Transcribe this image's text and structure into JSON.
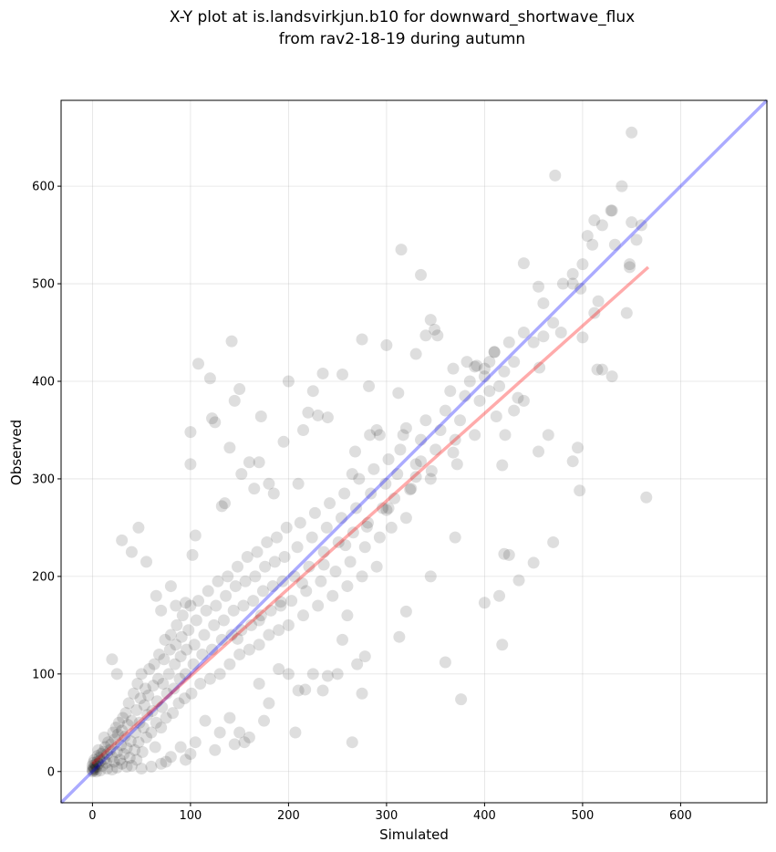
{
  "chart_data": {
    "type": "scatter",
    "title_line1": "X-Y plot at is.landsvirkjun.b10 for downward_shortwave_flux",
    "title_line2": "from rav2-18-19 during autumn",
    "xlabel": "Simulated",
    "ylabel": "Observed",
    "xlim": [
      -32,
      688
    ],
    "ylim": [
      -32,
      688
    ],
    "xticks": [
      0,
      100,
      200,
      300,
      400,
      500,
      600
    ],
    "yticks": [
      0,
      100,
      200,
      300,
      400,
      500,
      600
    ],
    "grid": true,
    "identity_line": {
      "color": "#0000ff",
      "opacity": 0.33
    },
    "fit_line": {
      "color": "#ff0000",
      "opacity": 0.33,
      "x": [
        0,
        567
      ],
      "y": [
        8,
        517
      ]
    },
    "point_color": "#000000",
    "point_opacity": 0.13,
    "points": [
      [
        0,
        0
      ],
      [
        0,
        2
      ],
      [
        1,
        1
      ],
      [
        1,
        4
      ],
      [
        2,
        3
      ],
      [
        0,
        6
      ],
      [
        3,
        7
      ],
      [
        1,
        9
      ],
      [
        2,
        12
      ],
      [
        4,
        5
      ],
      [
        3,
        2
      ],
      [
        5,
        10
      ],
      [
        6,
        8
      ],
      [
        7,
        14
      ],
      [
        5,
        16
      ],
      [
        8,
        11
      ],
      [
        9,
        18
      ],
      [
        10,
        6
      ],
      [
        6,
        22
      ],
      [
        11,
        20
      ],
      [
        12,
        13
      ],
      [
        13,
        25
      ],
      [
        14,
        9
      ],
      [
        15,
        18
      ],
      [
        16,
        30
      ],
      [
        12,
        35
      ],
      [
        18,
        22
      ],
      [
        19,
        28
      ],
      [
        20,
        15
      ],
      [
        21,
        40
      ],
      [
        22,
        10
      ],
      [
        23,
        33
      ],
      [
        24,
        45
      ],
      [
        25,
        20
      ],
      [
        26,
        38
      ],
      [
        27,
        50
      ],
      [
        28,
        12
      ],
      [
        29,
        27
      ],
      [
        30,
        42
      ],
      [
        31,
        55
      ],
      [
        32,
        18
      ],
      [
        33,
        36
      ],
      [
        34,
        60
      ],
      [
        35,
        24
      ],
      [
        36,
        48
      ],
      [
        37,
        70
      ],
      [
        38,
        14
      ],
      [
        39,
        31
      ],
      [
        40,
        52
      ],
      [
        42,
        80
      ],
      [
        43,
        22
      ],
      [
        44,
        40
      ],
      [
        45,
        63
      ],
      [
        46,
        90
      ],
      [
        47,
        30
      ],
      [
        48,
        50
      ],
      [
        49,
        75
      ],
      [
        50,
        100
      ],
      [
        51,
        20
      ],
      [
        52,
        45
      ],
      [
        53,
        68
      ],
      [
        54,
        85
      ],
      [
        55,
        35
      ],
      [
        56,
        58
      ],
      [
        57,
        78
      ],
      [
        58,
        105
      ],
      [
        60,
        40
      ],
      [
        61,
        62
      ],
      [
        62,
        88
      ],
      [
        63,
        110
      ],
      [
        64,
        25
      ],
      [
        65,
        50
      ],
      [
        66,
        72
      ],
      [
        67,
        95
      ],
      [
        68,
        120
      ],
      [
        70,
        45
      ],
      [
        71,
        66
      ],
      [
        72,
        90
      ],
      [
        73,
        115
      ],
      [
        74,
        135
      ],
      [
        75,
        55
      ],
      [
        76,
        80
      ],
      [
        78,
        100
      ],
      [
        79,
        125
      ],
      [
        80,
        140
      ],
      [
        82,
        60
      ],
      [
        83,
        85
      ],
      [
        84,
        110
      ],
      [
        85,
        130
      ],
      [
        86,
        150
      ],
      [
        88,
        70
      ],
      [
        89,
        95
      ],
      [
        90,
        118
      ],
      [
        91,
        138
      ],
      [
        92,
        160
      ],
      [
        94,
        75
      ],
      [
        95,
        100
      ],
      [
        96,
        125
      ],
      [
        98,
        145
      ],
      [
        100,
        170
      ],
      [
        101,
        80
      ],
      [
        103,
        110
      ],
      [
        104,
        130
      ],
      [
        106,
        155
      ],
      [
        108,
        175
      ],
      [
        110,
        90
      ],
      [
        112,
        120
      ],
      [
        114,
        140
      ],
      [
        116,
        165
      ],
      [
        118,
        185
      ],
      [
        120,
        95
      ],
      [
        122,
        125
      ],
      [
        124,
        150
      ],
      [
        126,
        170
      ],
      [
        128,
        195
      ],
      [
        130,
        100
      ],
      [
        132,
        135
      ],
      [
        134,
        155
      ],
      [
        136,
        180
      ],
      [
        138,
        200
      ],
      [
        140,
        110
      ],
      [
        142,
        140
      ],
      [
        144,
        165
      ],
      [
        146,
        190
      ],
      [
        148,
        210
      ],
      [
        150,
        120
      ],
      [
        152,
        145
      ],
      [
        154,
        170
      ],
      [
        156,
        195
      ],
      [
        158,
        220
      ],
      [
        160,
        125
      ],
      [
        162,
        150
      ],
      [
        164,
        175
      ],
      [
        166,
        200
      ],
      [
        168,
        225
      ],
      [
        170,
        130
      ],
      [
        172,
        160
      ],
      [
        174,
        185
      ],
      [
        176,
        210
      ],
      [
        178,
        235
      ],
      [
        180,
        140
      ],
      [
        182,
        165
      ],
      [
        184,
        190
      ],
      [
        186,
        215
      ],
      [
        188,
        240
      ],
      [
        190,
        145
      ],
      [
        192,
        170
      ],
      [
        194,
        195
      ],
      [
        196,
        220
      ],
      [
        198,
        250
      ],
      [
        200,
        150
      ],
      [
        203,
        175
      ],
      [
        206,
        200
      ],
      [
        209,
        230
      ],
      [
        212,
        255
      ],
      [
        215,
        160
      ],
      [
        218,
        185
      ],
      [
        221,
        210
      ],
      [
        224,
        240
      ],
      [
        227,
        265
      ],
      [
        230,
        170
      ],
      [
        233,
        195
      ],
      [
        236,
        225
      ],
      [
        239,
        250
      ],
      [
        242,
        275
      ],
      [
        245,
        180
      ],
      [
        248,
        205
      ],
      [
        251,
        235
      ],
      [
        254,
        260
      ],
      [
        257,
        285
      ],
      [
        260,
        190
      ],
      [
        263,
        215
      ],
      [
        266,
        245
      ],
      [
        269,
        270
      ],
      [
        272,
        300
      ],
      [
        275,
        200
      ],
      [
        278,
        230
      ],
      [
        281,
        255
      ],
      [
        284,
        285
      ],
      [
        287,
        310
      ],
      [
        290,
        210
      ],
      [
        293,
        240
      ],
      [
        296,
        270
      ],
      [
        299,
        295
      ],
      [
        302,
        320
      ],
      [
        305,
        250
      ],
      [
        308,
        280
      ],
      [
        311,
        305
      ],
      [
        314,
        330
      ],
      [
        317,
        345
      ],
      [
        320,
        260
      ],
      [
        325,
        290
      ],
      [
        330,
        315
      ],
      [
        335,
        340
      ],
      [
        340,
        360
      ],
      [
        345,
        300
      ],
      [
        350,
        330
      ],
      [
        355,
        350
      ],
      [
        360,
        370
      ],
      [
        365,
        390
      ],
      [
        370,
        340
      ],
      [
        375,
        360
      ],
      [
        380,
        385
      ],
      [
        385,
        400
      ],
      [
        390,
        415
      ],
      [
        395,
        380
      ],
      [
        400,
        405
      ],
      [
        405,
        420
      ],
      [
        410,
        430
      ],
      [
        415,
        395
      ],
      [
        420,
        410
      ],
      [
        425,
        440
      ],
      [
        430,
        420
      ],
      [
        440,
        450
      ],
      [
        450,
        440
      ],
      [
        460,
        480
      ],
      [
        470,
        460
      ],
      [
        480,
        500
      ],
      [
        490,
        510
      ],
      [
        500,
        520
      ],
      [
        510,
        540
      ],
      [
        520,
        560
      ],
      [
        530,
        575
      ],
      [
        540,
        600
      ],
      [
        550,
        655
      ],
      [
        560,
        560
      ],
      [
        548,
        517
      ],
      [
        545,
        470
      ],
      [
        530,
        405
      ],
      [
        515,
        412
      ],
      [
        500,
        445
      ],
      [
        495,
        332
      ],
      [
        490,
        318
      ],
      [
        497,
        288
      ],
      [
        470,
        235
      ],
      [
        455,
        328
      ],
      [
        450,
        214
      ],
      [
        440,
        380
      ],
      [
        435,
        196
      ],
      [
        430,
        370
      ],
      [
        425,
        222
      ],
      [
        420,
        223
      ],
      [
        418,
        130
      ],
      [
        415,
        180
      ],
      [
        400,
        173
      ],
      [
        376,
        74
      ],
      [
        370,
        240
      ],
      [
        360,
        112
      ],
      [
        345,
        200
      ],
      [
        335,
        318
      ],
      [
        330,
        302
      ],
      [
        320,
        164
      ],
      [
        313,
        138
      ],
      [
        300,
        268
      ],
      [
        290,
        350
      ],
      [
        282,
        395
      ],
      [
        278,
        118
      ],
      [
        275,
        80
      ],
      [
        270,
        110
      ],
      [
        265,
        30
      ],
      [
        260,
        160
      ],
      [
        255,
        135
      ],
      [
        250,
        100
      ],
      [
        240,
        98
      ],
      [
        235,
        83
      ],
      [
        225,
        100
      ],
      [
        217,
        84
      ],
      [
        210,
        83
      ],
      [
        207,
        40
      ],
      [
        200,
        100
      ],
      [
        190,
        105
      ],
      [
        180,
        70
      ],
      [
        175,
        52
      ],
      [
        170,
        90
      ],
      [
        160,
        35
      ],
      [
        155,
        30
      ],
      [
        150,
        40
      ],
      [
        145,
        28
      ],
      [
        140,
        55
      ],
      [
        130,
        40
      ],
      [
        125,
        22
      ],
      [
        115,
        52
      ],
      [
        105,
        30
      ],
      [
        100,
        18
      ],
      [
        95,
        12
      ],
      [
        90,
        25
      ],
      [
        80,
        15
      ],
      [
        75,
        10
      ],
      [
        70,
        8
      ],
      [
        60,
        5
      ],
      [
        50,
        3
      ],
      [
        45,
        12
      ],
      [
        40,
        6
      ],
      [
        35,
        5
      ],
      [
        30,
        8
      ],
      [
        25,
        4
      ],
      [
        20,
        2
      ],
      [
        15,
        3
      ],
      [
        8,
        1
      ],
      [
        4,
        0
      ],
      [
        20,
        115
      ],
      [
        25,
        100
      ],
      [
        30,
        237
      ],
      [
        40,
        225
      ],
      [
        47,
        250
      ],
      [
        55,
        215
      ],
      [
        65,
        180
      ],
      [
        70,
        165
      ],
      [
        80,
        190
      ],
      [
        85,
        170
      ],
      [
        95,
        173
      ],
      [
        100,
        315
      ],
      [
        100,
        348
      ],
      [
        102,
        222
      ],
      [
        105,
        242
      ],
      [
        108,
        418
      ],
      [
        120,
        403
      ],
      [
        122,
        362
      ],
      [
        125,
        358
      ],
      [
        132,
        272
      ],
      [
        135,
        275
      ],
      [
        140,
        332
      ],
      [
        142,
        441
      ],
      [
        145,
        380
      ],
      [
        150,
        392
      ],
      [
        152,
        305
      ],
      [
        160,
        317
      ],
      [
        165,
        290
      ],
      [
        170,
        317
      ],
      [
        172,
        364
      ],
      [
        180,
        295
      ],
      [
        185,
        285
      ],
      [
        195,
        338
      ],
      [
        200,
        400
      ],
      [
        210,
        295
      ],
      [
        215,
        350
      ],
      [
        220,
        368
      ],
      [
        225,
        390
      ],
      [
        230,
        365
      ],
      [
        235,
        408
      ],
      [
        240,
        363
      ],
      [
        255,
        407
      ],
      [
        265,
        305
      ],
      [
        268,
        328
      ],
      [
        275,
        443
      ],
      [
        283,
        345
      ],
      [
        293,
        345
      ],
      [
        300,
        437
      ],
      [
        312,
        388
      ],
      [
        315,
        535
      ],
      [
        320,
        352
      ],
      [
        330,
        428
      ],
      [
        335,
        509
      ],
      [
        340,
        447
      ],
      [
        345,
        463
      ],
      [
        349,
        453
      ],
      [
        352,
        447
      ],
      [
        368,
        413
      ],
      [
        372,
        315
      ],
      [
        382,
        420
      ],
      [
        392,
        416
      ],
      [
        400,
        413
      ],
      [
        405,
        390
      ],
      [
        410,
        430
      ],
      [
        418,
        314
      ],
      [
        421,
        345
      ],
      [
        440,
        521
      ],
      [
        455,
        497
      ],
      [
        460,
        446
      ],
      [
        465,
        345
      ],
      [
        472,
        611
      ],
      [
        490,
        500
      ],
      [
        505,
        549
      ],
      [
        512,
        565
      ],
      [
        516,
        482
      ],
      [
        520,
        412
      ],
      [
        529,
        575
      ],
      [
        533,
        540
      ],
      [
        550,
        563
      ],
      [
        565,
        281
      ],
      [
        555,
        545
      ],
      [
        548,
        520
      ],
      [
        512,
        470
      ],
      [
        498,
        495
      ],
      [
        478,
        450
      ],
      [
        456,
        414
      ],
      [
        434,
        383
      ],
      [
        412,
        364
      ],
      [
        390,
        345
      ],
      [
        368,
        327
      ],
      [
        346,
        308
      ],
      [
        324,
        289
      ],
      [
        302,
        270
      ],
      [
        280,
        251
      ],
      [
        258,
        232
      ],
      [
        236,
        212
      ],
      [
        214,
        193
      ],
      [
        192,
        174
      ],
      [
        170,
        155
      ],
      [
        148,
        136
      ]
    ]
  }
}
